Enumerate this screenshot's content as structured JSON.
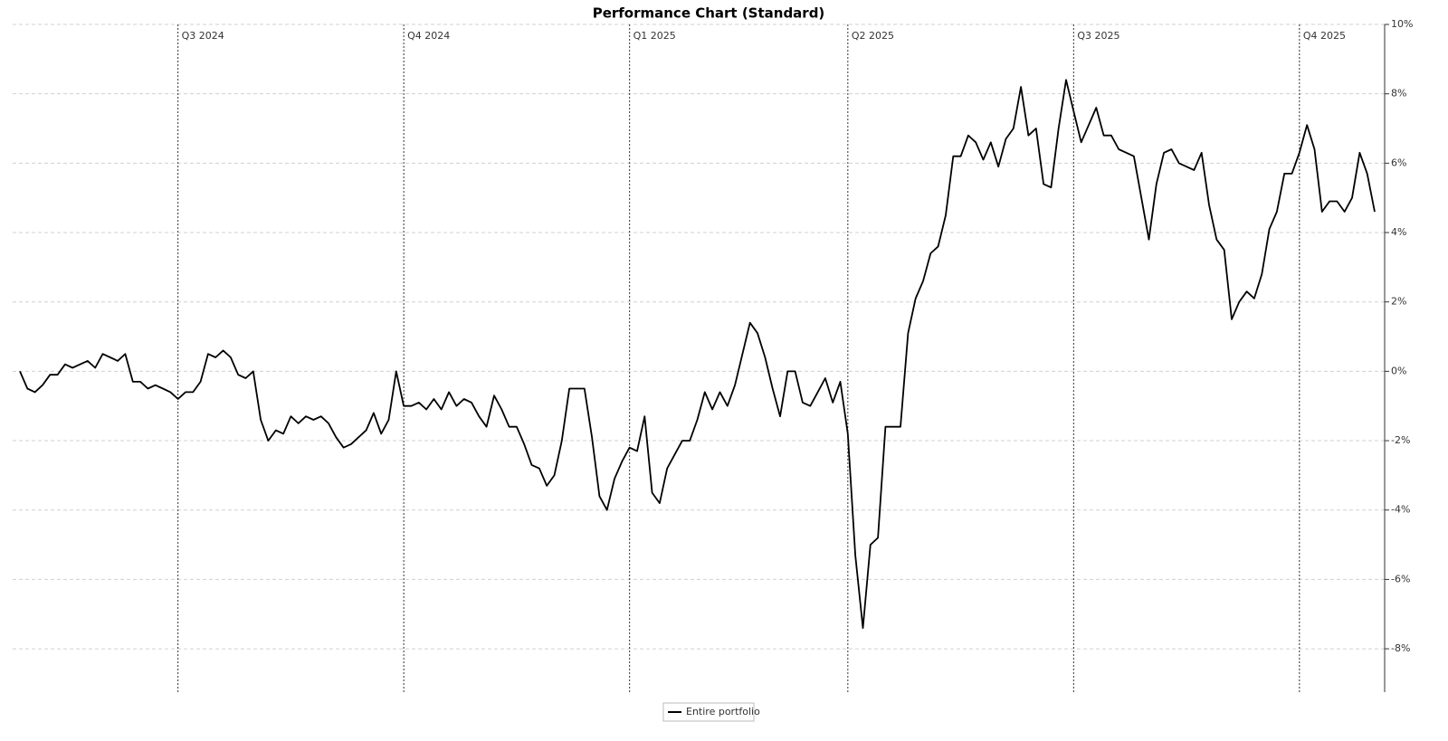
{
  "chart_data": {
    "type": "line",
    "title": "Performance Chart (Standard)",
    "categories": [
      null,
      null,
      null,
      null,
      null,
      null,
      null,
      null,
      null,
      null,
      null,
      null,
      null,
      null,
      null,
      null,
      null,
      null,
      null,
      null,
      null,
      "Q3 2024",
      null,
      null,
      null,
      null,
      null,
      null,
      null,
      null,
      null,
      null,
      null,
      null,
      null,
      null,
      null,
      null,
      null,
      null,
      null,
      null,
      null,
      null,
      null,
      null,
      null,
      null,
      null,
      null,
      null,
      "Q4 2024",
      null,
      null,
      null,
      null,
      null,
      null,
      null,
      null,
      null,
      null,
      null,
      null,
      null,
      null,
      null,
      null,
      null,
      null,
      null,
      null,
      null,
      null,
      null,
      null,
      null,
      null,
      null,
      null,
      null,
      "Q1 2025",
      null,
      null,
      null,
      null,
      null,
      null,
      null,
      null,
      null,
      null,
      null,
      null,
      null,
      null,
      null,
      null,
      null,
      null,
      null,
      null,
      null,
      null,
      null,
      null,
      null,
      null,
      null,
      null,
      "Q2 2025",
      null,
      null,
      null,
      null,
      null,
      null,
      null,
      null,
      null,
      null,
      null,
      null,
      null,
      null,
      null,
      null,
      null,
      null,
      null,
      null,
      null,
      null,
      null,
      null,
      null,
      null,
      null,
      null,
      null,
      "Q3 2025",
      null,
      null,
      null,
      null,
      null,
      null,
      null,
      null,
      null,
      null,
      null,
      null,
      null,
      null,
      null,
      null,
      null,
      null,
      null,
      null,
      null,
      null,
      null,
      null,
      null,
      null,
      null,
      null,
      null,
      "Q4 2025",
      null,
      null,
      null,
      null,
      null,
      null,
      null,
      null,
      null,
      null
    ],
    "series": [
      {
        "name": "Entire portfolio",
        "color": "#000000",
        "values": [
          0,
          -0.5,
          -0.6,
          -0.4,
          -0.1,
          -0.1,
          0.2,
          0.1,
          0.2,
          0.3,
          0.1,
          0.5,
          0.4,
          0.3,
          0.5,
          -0.3,
          -0.3,
          -0.5,
          -0.4,
          -0.5,
          -0.6,
          -0.8,
          -0.6,
          -0.6,
          -0.3,
          0.5,
          0.4,
          0.6,
          0.4,
          -0.1,
          -0.2,
          0,
          -1.4,
          -2.0,
          -1.7,
          -1.8,
          -1.3,
          -1.5,
          -1.3,
          -1.4,
          -1.3,
          -1.5,
          -1.9,
          -2.2,
          -2.1,
          -1.9,
          -1.7,
          -1.2,
          -1.8,
          -1.4,
          0,
          -1.0,
          -1.0,
          -0.9,
          -1.1,
          -0.8,
          -1.1,
          -0.6,
          -1.0,
          -0.8,
          -0.9,
          -1.3,
          -1.6,
          -0.7,
          -1.1,
          -1.6,
          -1.6,
          -2.1,
          -2.7,
          -2.8,
          -3.3,
          -3.0,
          -2.0,
          -0.5,
          -0.5,
          -0.5,
          -1.9,
          -3.6,
          -4.0,
          -3.1,
          -2.6,
          -2.2,
          -2.3,
          -1.3,
          -3.5,
          -3.8,
          -2.8,
          -2.4,
          -2.0,
          -2.0,
          -1.4,
          -0.6,
          -1.1,
          -0.6,
          -1.0,
          -0.4,
          0.5,
          1.4,
          1.1,
          0.4,
          -0.5,
          -1.3,
          0,
          0,
          -0.9,
          -1.0,
          -0.6,
          -0.2,
          -0.9,
          -0.3,
          -1.8,
          -5.3,
          -7.4,
          -5.0,
          -4.8,
          -1.6,
          -1.6,
          -1.6,
          1.1,
          2.1,
          2.6,
          3.4,
          3.6,
          4.5,
          6.2,
          6.2,
          6.8,
          6.6,
          6.1,
          6.6,
          5.9,
          6.7,
          7.0,
          8.2,
          6.8,
          7.0,
          5.4,
          5.3,
          7.0,
          8.4,
          7.5,
          6.6,
          7.1,
          7.6,
          6.8,
          6.8,
          6.4,
          6.3,
          6.2,
          5.0,
          3.8,
          5.4,
          6.3,
          6.4,
          6.0,
          5.9,
          5.8,
          6.3,
          4.8,
          3.8,
          3.5,
          1.5,
          2.0,
          2.3,
          2.1,
          2.8,
          4.1,
          4.6,
          5.7,
          5.7,
          6.3,
          7.1,
          6.4,
          4.6,
          4.9,
          4.9,
          4.6,
          5.0,
          6.3,
          5.7,
          4.6
        ]
      }
    ],
    "ylim": [
      -9.25,
      10
    ],
    "yticks": [
      {
        "value": -8,
        "label": "-8%"
      },
      {
        "value": -6,
        "label": "-6%"
      },
      {
        "value": -4,
        "label": "-4%"
      },
      {
        "value": -2,
        "label": "-2%"
      },
      {
        "value": 0,
        "label": "0%"
      },
      {
        "value": 2,
        "label": "2%"
      },
      {
        "value": 4,
        "label": "4%"
      },
      {
        "value": 6,
        "label": "6%"
      },
      {
        "value": 8,
        "label": "8%"
      },
      {
        "value": 10,
        "label": "10%"
      }
    ],
    "grid": true,
    "legend": "bottom"
  }
}
